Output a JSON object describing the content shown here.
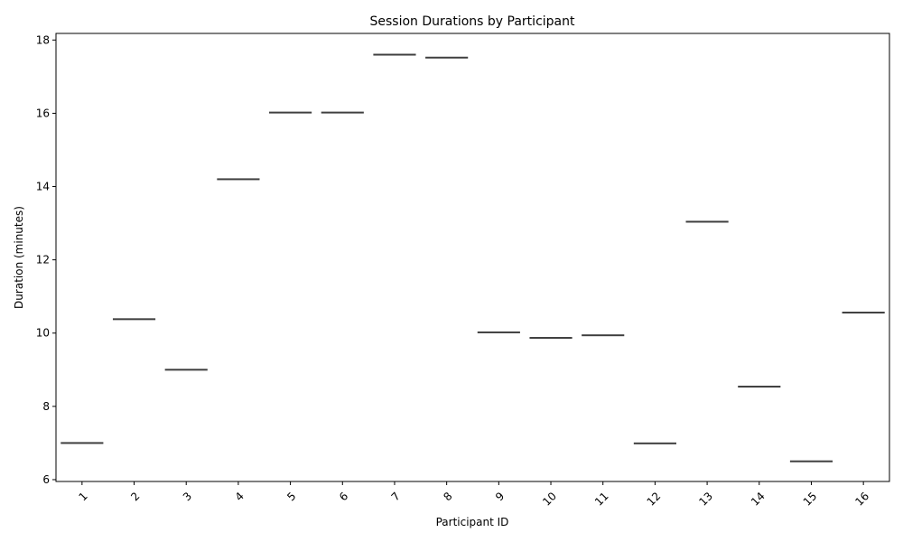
{
  "chart_data": {
    "type": "box",
    "title": "Session Durations by Participant",
    "xlabel": "Participant ID",
    "ylabel": "Duration (minutes)",
    "categories": [
      "1",
      "2",
      "3",
      "4",
      "5",
      "6",
      "7",
      "8",
      "9",
      "10",
      "11",
      "12",
      "13",
      "14",
      "15",
      "16"
    ],
    "values": [
      7.0,
      10.38,
      9.0,
      14.2,
      16.02,
      16.02,
      17.6,
      17.52,
      10.02,
      9.87,
      9.94,
      6.99,
      13.04,
      8.54,
      6.5,
      10.56
    ],
    "yticks": [
      6,
      8,
      10,
      12,
      14,
      16,
      18
    ],
    "ylim": [
      5.95,
      18.18
    ],
    "grid": false,
    "x_tick_rotation": -45,
    "box_color": "#3f3f3f"
  }
}
